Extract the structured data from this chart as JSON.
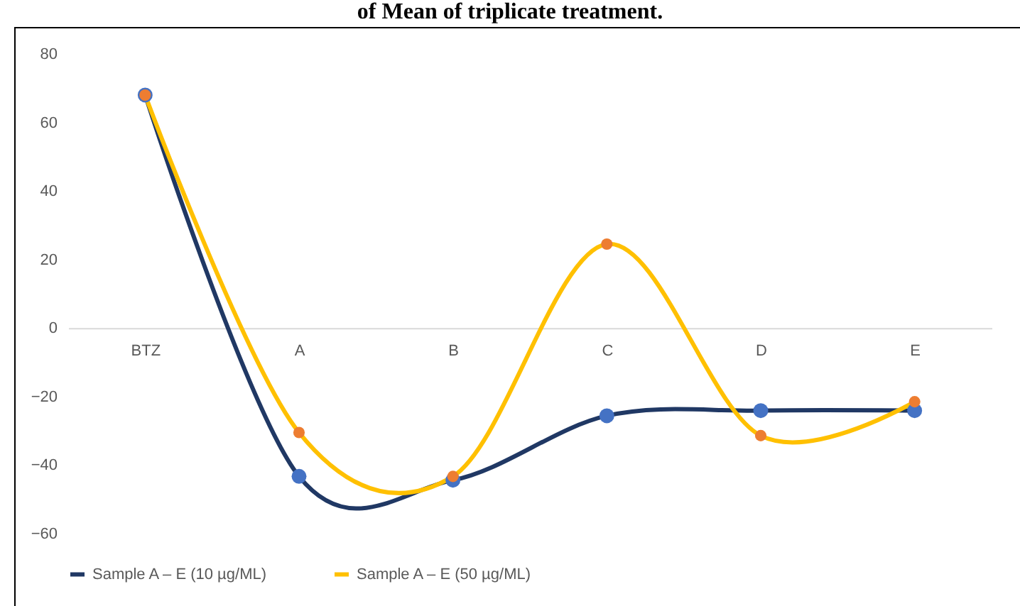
{
  "chart_data": {
    "type": "line",
    "title": "of Mean of triplicate treatment.",
    "categories": [
      "BTZ",
      "A",
      "B",
      "C",
      "D",
      "E"
    ],
    "series": [
      {
        "name": "Sample A – E (10 µg/ML)",
        "color": "#203864",
        "values": [
          68,
          -43.3,
          -44.4,
          -25.6,
          -24.1,
          -24.1
        ]
      },
      {
        "name": "Sample A – E (50 µg/ML)",
        "color": "#ffc000",
        "values": [
          68,
          -30.5,
          -43.3,
          24.5,
          -31.4,
          -21.5
        ]
      }
    ],
    "ylim": [
      -60,
      80
    ],
    "yticks": [
      -60,
      -40,
      -20,
      0,
      20,
      40,
      60,
      80
    ],
    "grid": false,
    "legend": "bottom",
    "marker": "circle",
    "line_style": "solid"
  }
}
